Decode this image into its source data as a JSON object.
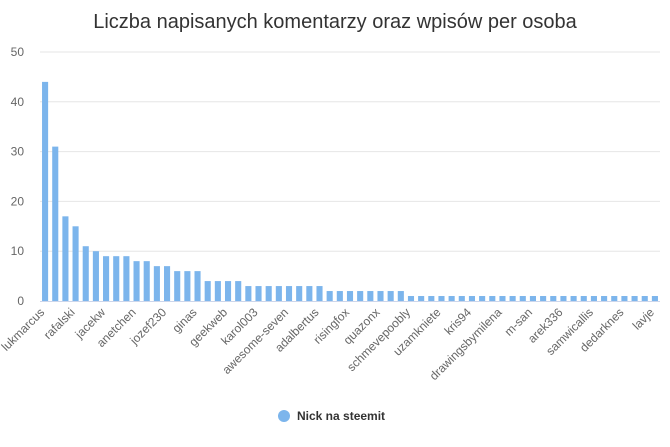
{
  "chart_data": {
    "type": "bar",
    "title": "Liczba napisanych komentarzy oraz wpisów per osoba",
    "xlabel": "",
    "ylabel": "",
    "ylim": [
      0,
      50
    ],
    "yticks": [
      0,
      10,
      20,
      30,
      40,
      50
    ],
    "grid": true,
    "legend_position": "bottom",
    "series": [
      {
        "name": "Nick na steemit",
        "color": "#7cb5ec",
        "values": [
          44,
          31,
          17,
          15,
          11,
          10,
          9,
          9,
          9,
          8,
          8,
          7,
          7,
          6,
          6,
          6,
          4,
          4,
          4,
          4,
          3,
          3,
          3,
          3,
          3,
          3,
          3,
          3,
          2,
          2,
          2,
          2,
          2,
          2,
          2,
          2,
          1,
          1,
          1,
          1,
          1,
          1,
          1,
          1,
          1,
          1,
          1,
          1,
          1,
          1,
          1,
          1,
          1,
          1,
          1,
          1,
          1,
          1,
          1,
          1,
          1
        ]
      }
    ],
    "visible_category_labels": [
      {
        "index": 0,
        "label": "lukmarcus"
      },
      {
        "index": 3,
        "label": "rafalski"
      },
      {
        "index": 6,
        "label": "jacekw"
      },
      {
        "index": 9,
        "label": "anetchen"
      },
      {
        "index": 12,
        "label": "jozef230"
      },
      {
        "index": 15,
        "label": "ginas"
      },
      {
        "index": 18,
        "label": "geekweb"
      },
      {
        "index": 21,
        "label": "karol003"
      },
      {
        "index": 24,
        "label": "awesome-seven"
      },
      {
        "index": 27,
        "label": "adalbertus"
      },
      {
        "index": 30,
        "label": "risingfox"
      },
      {
        "index": 33,
        "label": "quazonx"
      },
      {
        "index": 36,
        "label": "schmevepoobly"
      },
      {
        "index": 39,
        "label": "uzamkniete"
      },
      {
        "index": 42,
        "label": "kris94"
      },
      {
        "index": 45,
        "label": "drawingsbymilena"
      },
      {
        "index": 48,
        "label": "m-san"
      },
      {
        "index": 51,
        "label": "arek336"
      },
      {
        "index": 54,
        "label": "samwicallis"
      },
      {
        "index": 57,
        "label": "dedarknes"
      },
      {
        "index": 60,
        "label": "lavje"
      }
    ]
  }
}
